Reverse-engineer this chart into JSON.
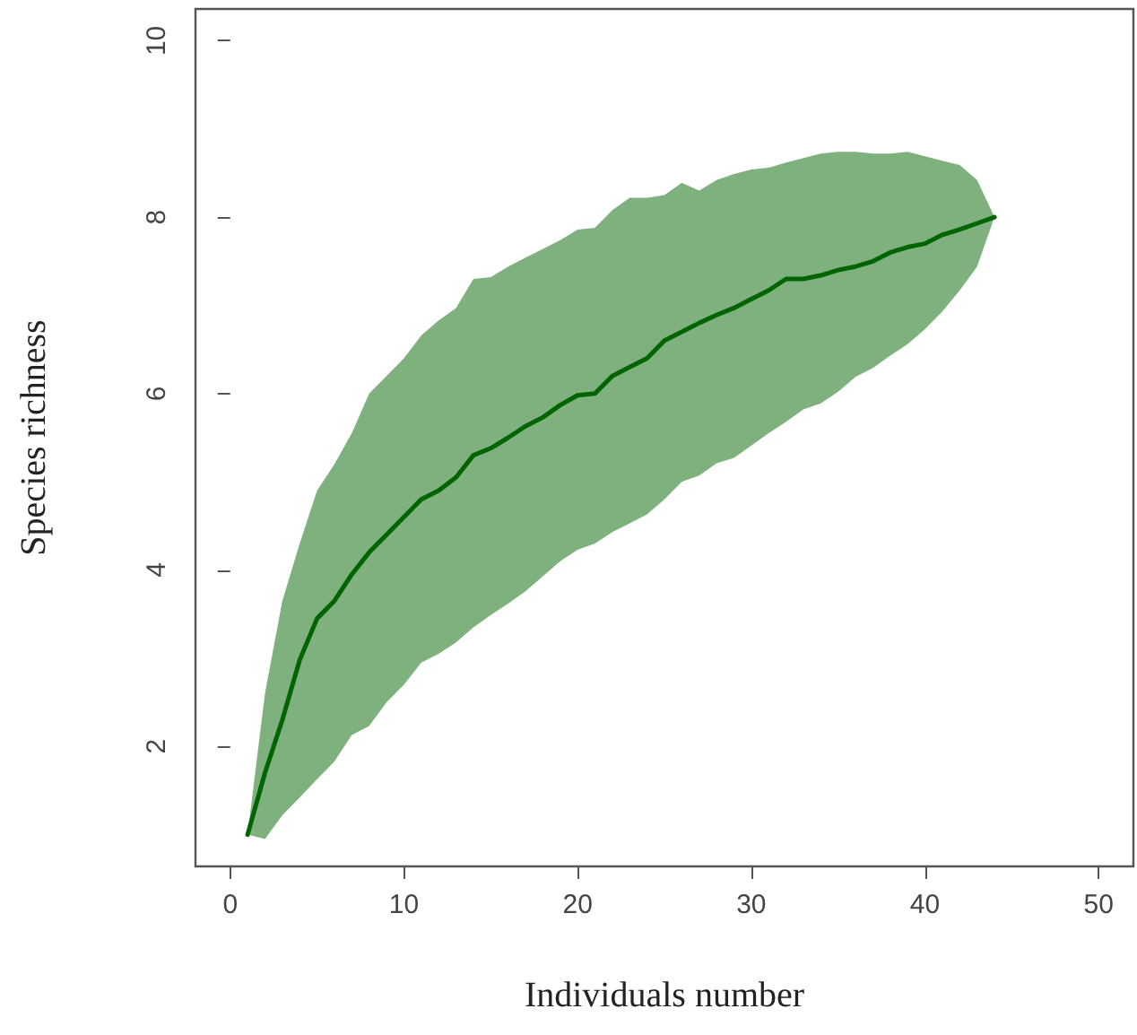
{
  "chart_data": {
    "type": "line",
    "xlabel": "Individuals number",
    "ylabel": "Species richness",
    "xlim": [
      -2,
      52
    ],
    "ylim": [
      0.64,
      10.36
    ],
    "xticks": [
      0,
      10,
      20,
      30,
      40,
      50
    ],
    "yticks": [
      2,
      4,
      6,
      8,
      10
    ],
    "grid": false,
    "marker": "none",
    "line_style": "solid",
    "series": [
      {
        "color": "#006400",
        "x": [
          1,
          2,
          3,
          4,
          5,
          6,
          7,
          8,
          9,
          10,
          11,
          12,
          13,
          14,
          15,
          16,
          17,
          18,
          19,
          20,
          21,
          22,
          23,
          24,
          25,
          26,
          27,
          28,
          29,
          30,
          31,
          32,
          33,
          34,
          35,
          36,
          37,
          38,
          39,
          40,
          41,
          42,
          43,
          44
        ],
        "values": [
          1.0,
          1.7,
          2.3,
          2.98,
          3.45,
          3.65,
          3.95,
          4.2,
          4.4,
          4.6,
          4.8,
          4.9,
          5.05,
          5.3,
          5.38,
          5.5,
          5.63,
          5.73,
          5.87,
          5.98,
          6.0,
          6.2,
          6.3,
          6.4,
          6.6,
          6.7,
          6.8,
          6.89,
          6.97,
          7.07,
          7.17,
          7.3,
          7.3,
          7.34,
          7.4,
          7.44,
          7.5,
          7.6,
          7.66,
          7.7,
          7.8,
          7.86,
          7.93,
          8.0
        ],
        "upper": [
          1.0,
          2.6,
          3.65,
          4.3,
          4.9,
          5.2,
          5.55,
          6.0,
          6.2,
          6.4,
          6.66,
          6.83,
          6.97,
          7.3,
          7.32,
          7.44,
          7.54,
          7.64,
          7.74,
          7.86,
          7.88,
          8.08,
          8.22,
          8.22,
          8.25,
          8.39,
          8.3,
          8.42,
          8.49,
          8.54,
          8.56,
          8.62,
          8.67,
          8.72,
          8.74,
          8.74,
          8.72,
          8.72,
          8.74,
          8.69,
          8.64,
          8.59,
          8.42,
          8.0
        ],
        "lower": [
          1.0,
          0.95,
          1.22,
          1.42,
          1.63,
          1.83,
          2.13,
          2.23,
          2.5,
          2.7,
          2.95,
          3.05,
          3.18,
          3.35,
          3.49,
          3.62,
          3.76,
          3.93,
          4.1,
          4.23,
          4.3,
          4.43,
          4.53,
          4.63,
          4.8,
          5.0,
          5.07,
          5.21,
          5.27,
          5.41,
          5.55,
          5.68,
          5.82,
          5.89,
          6.02,
          6.19,
          6.29,
          6.43,
          6.56,
          6.73,
          6.93,
          7.17,
          7.44,
          8.0
        ]
      }
    ]
  }
}
